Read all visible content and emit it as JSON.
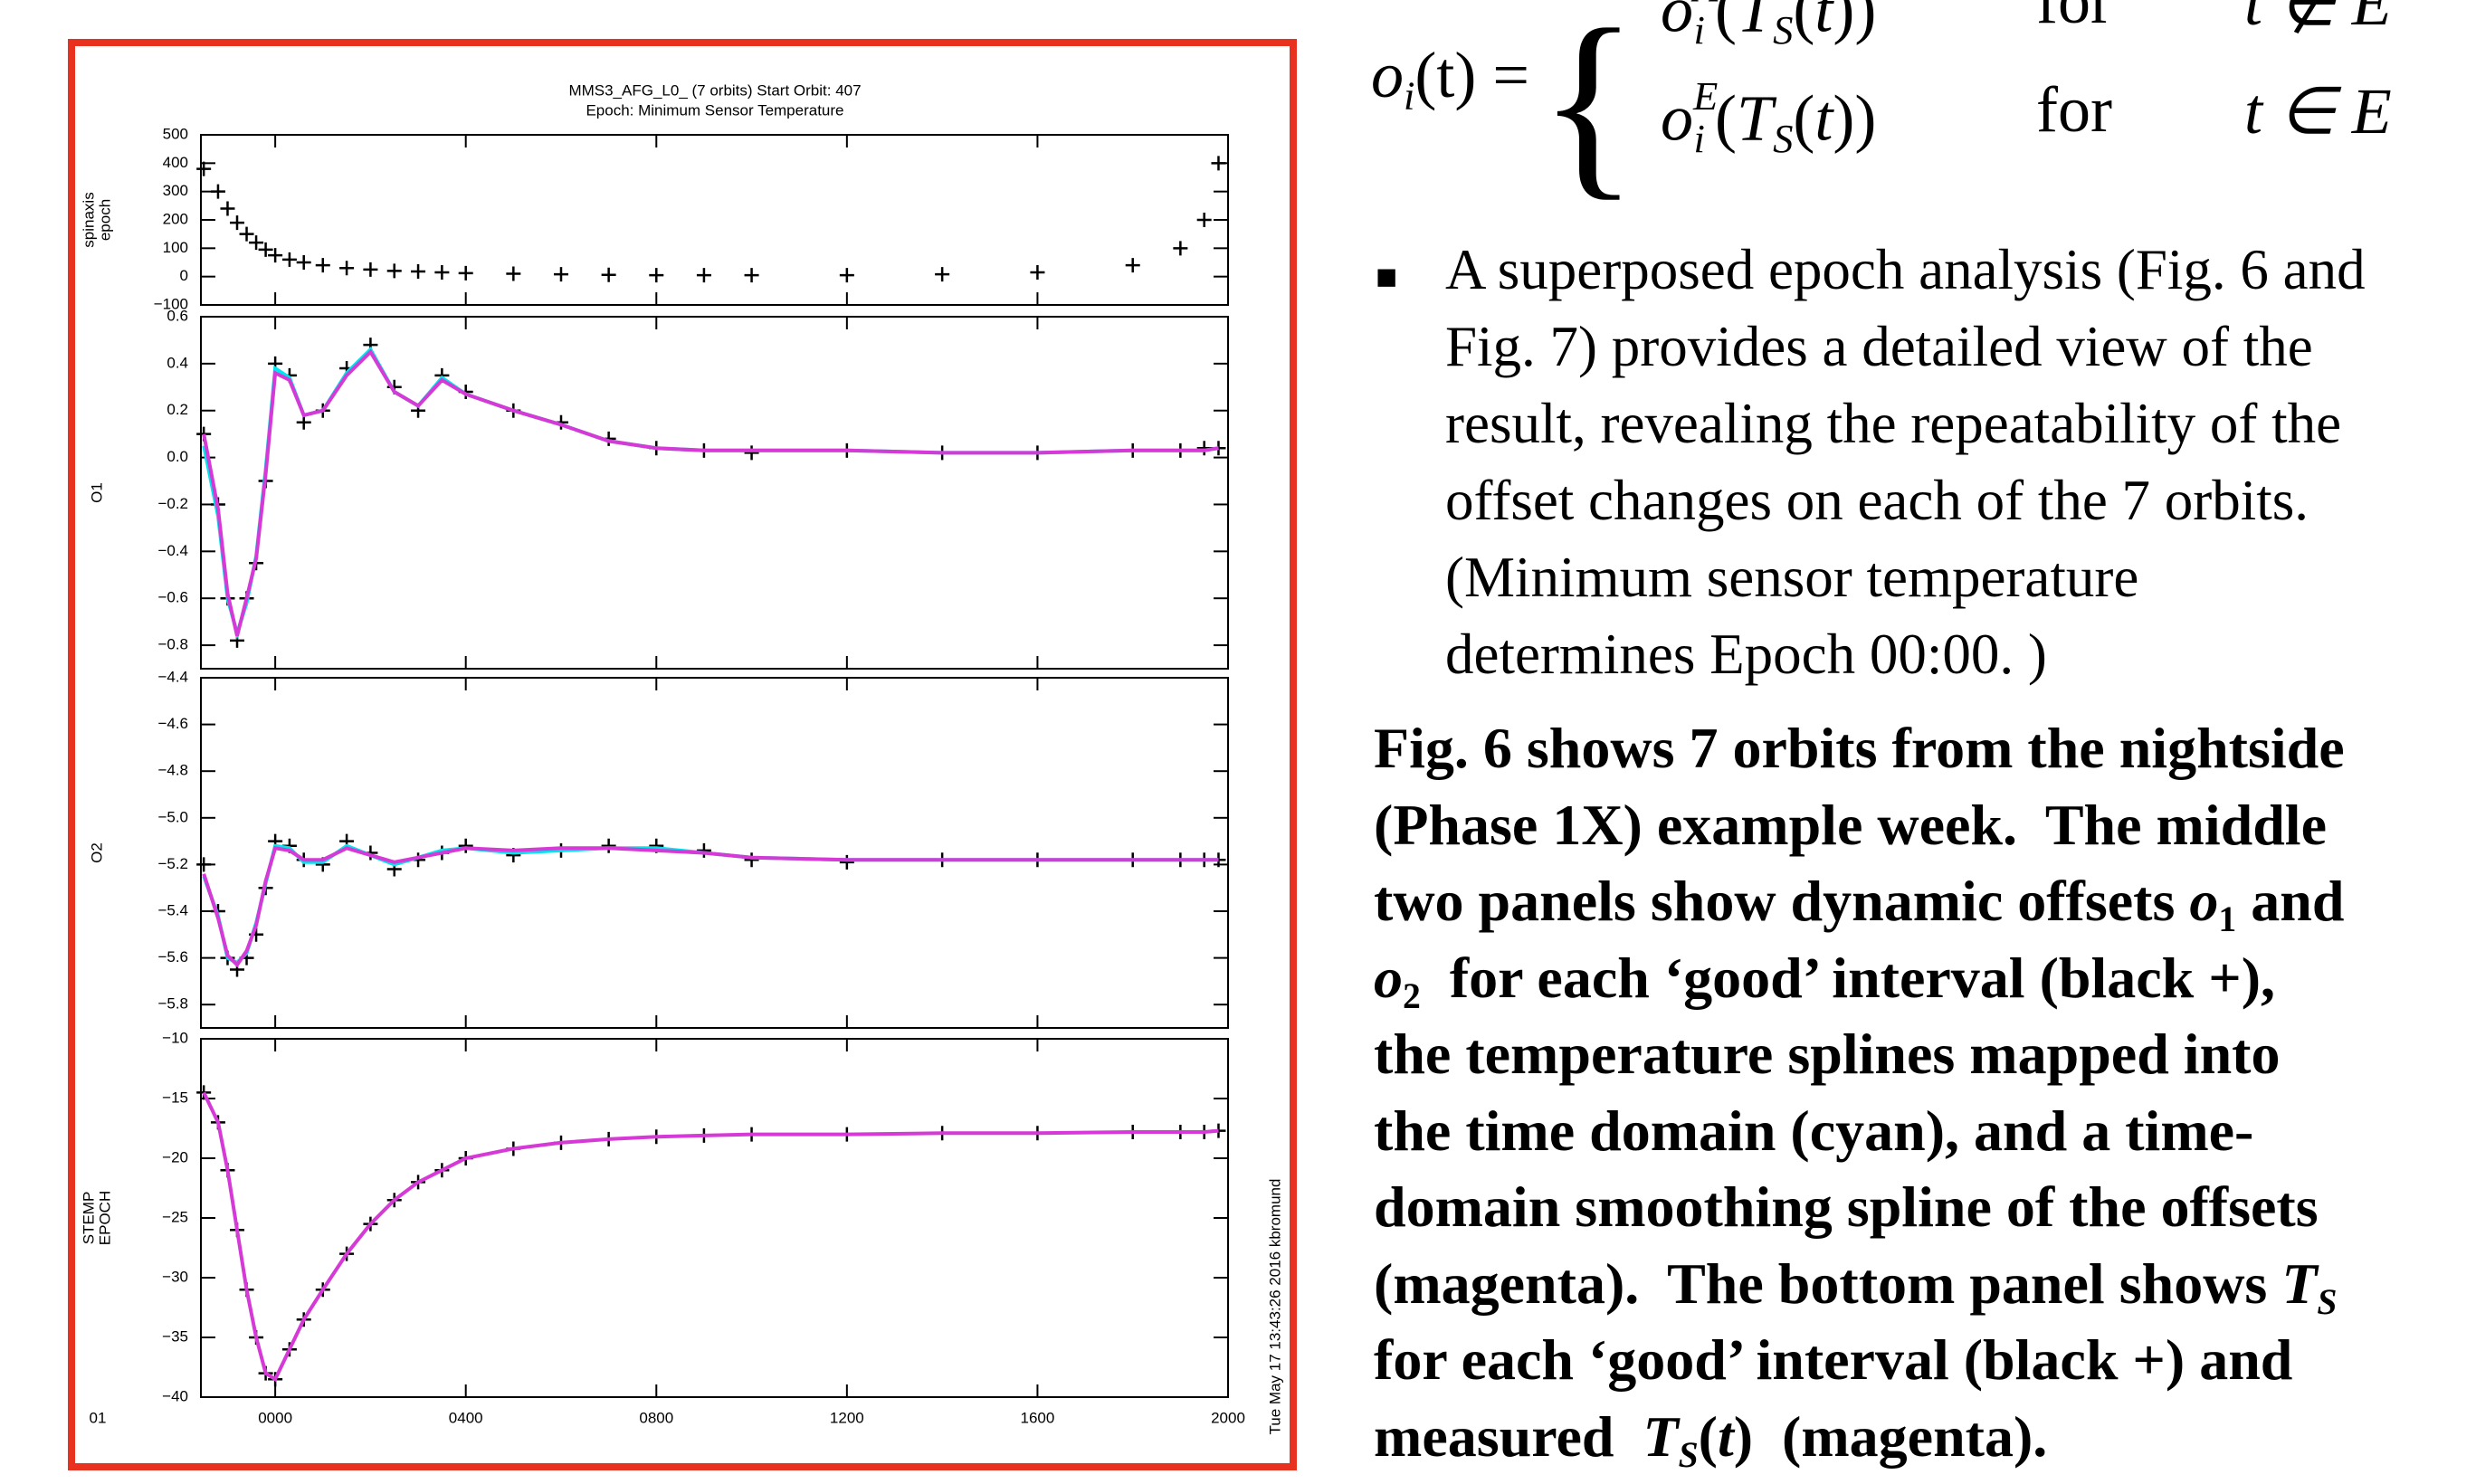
{
  "chart_data": [
    {
      "type": "scatter-line",
      "title": [
        "MMS3_AFG_L0_    (7 orbits)    Start Orbit: 407",
        "Epoch: Minimum Sensor Temperature"
      ],
      "ylabel": [
        "spinaxis",
        "epoch"
      ],
      "x": [
        -1.5,
        -1.2,
        -1.0,
        -0.8,
        -0.6,
        -0.4,
        -0.2,
        0,
        0.3,
        0.6,
        1,
        1.5,
        2,
        2.5,
        3,
        3.5,
        4,
        5,
        6,
        7,
        8,
        9,
        10,
        12,
        14,
        16,
        18,
        19,
        19.5,
        19.8
      ],
      "series": [
        {
          "color": "#000000",
          "marker": "+",
          "values": [
            380,
            300,
            240,
            190,
            150,
            120,
            95,
            75,
            60,
            50,
            40,
            30,
            25,
            20,
            18,
            15,
            12,
            10,
            8,
            6,
            5,
            5,
            5,
            5,
            8,
            15,
            40,
            100,
            200,
            400
          ]
        }
      ],
      "xlim": [
        -1.56,
        20
      ],
      "xticks": [
        0,
        4,
        8,
        12,
        16,
        20
      ],
      "ylim": [
        -100,
        500
      ],
      "yticks": [
        {
          "value": -100,
          "label": "−100"
        },
        0,
        100,
        200,
        300,
        400,
        500
      ]
    },
    {
      "type": "scatter-line",
      "ylabel": [
        "O1"
      ],
      "x": [
        -1.5,
        -1.2,
        -1.0,
        -0.8,
        -0.6,
        -0.4,
        -0.2,
        0,
        0.3,
        0.6,
        1,
        1.5,
        2,
        2.5,
        3,
        3.5,
        4,
        5,
        6,
        7,
        8,
        9,
        10,
        12,
        14,
        16,
        18,
        19,
        19.5,
        19.8
      ],
      "series": [
        {
          "color": "#000000",
          "marker": "+",
          "values": [
            0.1,
            -0.2,
            -0.6,
            -0.78,
            -0.6,
            -0.45,
            -0.1,
            0.4,
            0.35,
            0.15,
            0.2,
            0.38,
            0.48,
            0.3,
            0.2,
            0.35,
            0.28,
            0.2,
            0.15,
            0.08,
            0.04,
            0.03,
            0.02,
            0.03,
            0.02,
            0.02,
            0.03,
            0.03,
            0.04,
            0.04
          ]
        },
        {
          "color": "#00e5ee",
          "marker": "line",
          "values": [
            0.05,
            -0.25,
            -0.6,
            -0.75,
            -0.62,
            -0.42,
            -0.05,
            0.38,
            0.34,
            0.18,
            0.2,
            0.36,
            0.46,
            0.28,
            0.22,
            0.34,
            0.27,
            0.2,
            0.14,
            0.07,
            0.04,
            0.03,
            0.03,
            0.03,
            0.02,
            0.02,
            0.03,
            0.03,
            0.03,
            0.04
          ]
        },
        {
          "color": "#d63ad6",
          "marker": "line",
          "values": [
            0.1,
            -0.22,
            -0.58,
            -0.76,
            -0.6,
            -0.43,
            -0.07,
            0.36,
            0.33,
            0.18,
            0.2,
            0.35,
            0.45,
            0.28,
            0.22,
            0.33,
            0.27,
            0.2,
            0.14,
            0.07,
            0.04,
            0.03,
            0.03,
            0.03,
            0.02,
            0.02,
            0.03,
            0.03,
            0.03,
            0.04
          ]
        }
      ],
      "xlim": [
        -1.56,
        20
      ],
      "xticks": [
        0,
        4,
        8,
        12,
        16,
        20
      ],
      "ylim": [
        -0.9,
        0.6
      ],
      "yticks": [
        {
          "value": -0.8,
          "label": "−0.8"
        },
        {
          "value": -0.6,
          "label": "−0.6"
        },
        {
          "value": -0.4,
          "label": "−0.4"
        },
        {
          "value": -0.2,
          "label": "−0.2"
        },
        {
          "value": 0,
          "label": "0.0"
        },
        0.2,
        0.4,
        0.6
      ]
    },
    {
      "type": "scatter-line",
      "ylabel": [
        "O2"
      ],
      "x": [
        -1.5,
        -1.2,
        -1.0,
        -0.8,
        -0.6,
        -0.4,
        -0.2,
        0,
        0.3,
        0.6,
        1,
        1.5,
        2,
        2.5,
        3,
        3.5,
        4,
        5,
        6,
        7,
        8,
        9,
        10,
        12,
        14,
        16,
        18,
        19,
        19.5,
        19.8
      ],
      "series": [
        {
          "color": "#000000",
          "marker": "+",
          "values": [
            -5.2,
            -5.4,
            -5.6,
            -5.65,
            -5.6,
            -5.5,
            -5.3,
            -5.1,
            -5.12,
            -5.18,
            -5.2,
            -5.1,
            -5.15,
            -5.22,
            -5.18,
            -5.15,
            -5.12,
            -5.16,
            -5.14,
            -5.12,
            -5.12,
            -5.14,
            -5.18,
            -5.19,
            -5.18,
            -5.18,
            -5.18,
            -5.18,
            -5.18,
            -5.18
          ]
        },
        {
          "color": "#00e5ee",
          "marker": "line",
          "values": [
            -5.25,
            -5.42,
            -5.6,
            -5.62,
            -5.58,
            -5.45,
            -5.28,
            -5.12,
            -5.13,
            -5.19,
            -5.19,
            -5.12,
            -5.16,
            -5.2,
            -5.17,
            -5.14,
            -5.13,
            -5.15,
            -5.14,
            -5.13,
            -5.13,
            -5.15,
            -5.17,
            -5.18,
            -5.18,
            -5.18,
            -5.18,
            -5.18,
            -5.18,
            -5.18
          ]
        },
        {
          "color": "#d63ad6",
          "marker": "line",
          "values": [
            -5.24,
            -5.43,
            -5.59,
            -5.63,
            -5.57,
            -5.46,
            -5.27,
            -5.13,
            -5.14,
            -5.18,
            -5.18,
            -5.13,
            -5.16,
            -5.19,
            -5.17,
            -5.15,
            -5.13,
            -5.14,
            -5.13,
            -5.13,
            -5.14,
            -5.15,
            -5.17,
            -5.18,
            -5.18,
            -5.18,
            -5.18,
            -5.18,
            -5.18,
            -5.18
          ]
        }
      ],
      "xlim": [
        -1.56,
        20
      ],
      "xticks": [
        0,
        4,
        8,
        12,
        16,
        20
      ],
      "ylim": [
        -5.9,
        -4.4
      ],
      "yticks": [
        {
          "value": -5.8,
          "label": "−5.8"
        },
        {
          "value": -5.6,
          "label": "−5.6"
        },
        {
          "value": -5.4,
          "label": "−5.4"
        },
        {
          "value": -5.2,
          "label": "−5.2"
        },
        {
          "value": -5.0,
          "label": "−5.0"
        },
        {
          "value": -4.8,
          "label": "−4.8"
        },
        {
          "value": -4.6,
          "label": "−4.6"
        },
        {
          "value": -4.4,
          "label": "−4.4"
        }
      ]
    },
    {
      "type": "scatter-line",
      "ylabel": [
        "STEMP",
        "EPOCH"
      ],
      "x": [
        -1.5,
        -1.2,
        -1.0,
        -0.8,
        -0.6,
        -0.4,
        -0.2,
        0,
        0.3,
        0.6,
        1,
        1.5,
        2,
        2.5,
        3,
        3.5,
        4,
        5,
        6,
        7,
        8,
        9,
        10,
        12,
        14,
        16,
        18,
        19,
        19.5,
        19.8
      ],
      "series": [
        {
          "color": "#000000",
          "marker": "+",
          "values": [
            -14.5,
            -17,
            -21,
            -26,
            -31,
            -35,
            -38,
            -38.5,
            -36,
            -33.5,
            -31,
            -28,
            -25.5,
            -23.5,
            -22,
            -21,
            -20,
            -19.2,
            -18.7,
            -18.4,
            -18.2,
            -18.1,
            -18,
            -18,
            -17.9,
            -17.9,
            -17.8,
            -17.8,
            -17.8,
            -17.7
          ]
        },
        {
          "color": "#d63ad6",
          "marker": "line",
          "values": [
            -14.5,
            -17,
            -21,
            -26,
            -31,
            -35,
            -38,
            -38.5,
            -36,
            -33.5,
            -31,
            -28,
            -25.5,
            -23.5,
            -22,
            -21,
            -20,
            -19.2,
            -18.7,
            -18.4,
            -18.2,
            -18.1,
            -18,
            -18,
            -17.9,
            -17.9,
            -17.8,
            -17.8,
            -17.8,
            -17.7
          ]
        }
      ],
      "xlim": [
        -1.56,
        20
      ],
      "xticks": [
        {
          "value": 0,
          "label": "0000"
        },
        {
          "value": 4,
          "label": "0400"
        },
        {
          "value": 8,
          "label": "0800"
        },
        {
          "value": 12,
          "label": "1200"
        },
        {
          "value": 16,
          "label": "1600"
        },
        {
          "value": 20,
          "label": "2000"
        }
      ],
      "x_axis_note": "01",
      "side_note": "Tue May 17 13:43:26 2016 kbromund",
      "ylim": [
        -40,
        -10
      ],
      "yticks": [
        {
          "value": -40,
          "label": "−40"
        },
        {
          "value": -35,
          "label": "−35"
        },
        {
          "value": -30,
          "label": "−30"
        },
        {
          "value": -25,
          "label": "−25"
        },
        {
          "value": -20,
          "label": "−20"
        },
        {
          "value": -15,
          "label": "−15"
        },
        {
          "value": -10,
          "label": "−10"
        }
      ]
    }
  ],
  "equation": {
    "lhs": [
      {
        "text": "o",
        "style": "italic"
      },
      {
        "text": "i",
        "style": "sub italic"
      },
      {
        "text": "(t) ="
      }
    ],
    "rows": [
      {
        "expr": [
          {
            "text": "o",
            "style": "italic"
          },
          {
            "text": "A",
            "style": "sup italic"
          },
          {
            "text": "i",
            "style": "subback italic"
          },
          {
            "text": "("
          },
          {
            "text": "T",
            "style": "italic"
          },
          {
            "text": "S",
            "style": "sub italic"
          },
          {
            "text": "("
          },
          {
            "text": "t",
            "style": "italic"
          },
          {
            "text": "))"
          }
        ],
        "word": "for",
        "cond": [
          {
            "text": "t ∉ E",
            "style": "italic"
          }
        ]
      },
      {
        "expr": [
          {
            "text": "o",
            "style": "italic"
          },
          {
            "text": "E",
            "style": "sup italic"
          },
          {
            "text": "i",
            "style": "subback italic"
          },
          {
            "text": "("
          },
          {
            "text": "T",
            "style": "italic"
          },
          {
            "text": "S",
            "style": "sub italic"
          },
          {
            "text": "("
          },
          {
            "text": "t",
            "style": "italic"
          },
          {
            "text": "))"
          }
        ],
        "word": "for",
        "cond": [
          {
            "text": "t ∈ E",
            "style": "italic"
          }
        ]
      }
    ]
  },
  "bullet": [
    "A superposed epoch analysis (Fig. 6 and",
    "Fig. 7) provides a detailed view of the",
    "result, revealing the repeatability of the",
    "offset changes on each of the 7 orbits.",
    "(Minimum sensor temperature",
    "determines Epoch 00:00. )"
  ],
  "caption": [
    [
      {
        "text": "Fig. 6 shows 7 orbits from the nightside"
      }
    ],
    [
      {
        "text": "(Phase 1X) example week.  The middle"
      }
    ],
    [
      {
        "text": "two panels show dynamic offsets "
      },
      {
        "text": "o",
        "style": "italic"
      },
      {
        "text": "1",
        "style": "sub"
      },
      {
        "text": " and"
      }
    ],
    [
      {
        "text": "o",
        "style": "italic"
      },
      {
        "text": "2",
        "style": "sub"
      },
      {
        "text": "  for each ‘good’ interval (black +),"
      }
    ],
    [
      {
        "text": "the temperature splines mapped into"
      }
    ],
    [
      {
        "text": "the time domain (cyan), and a time-"
      }
    ],
    [
      {
        "text": "domain smoothing spline of the offsets"
      }
    ],
    [
      {
        "text": "(magenta).  The bottom panel shows "
      },
      {
        "text": "T",
        "style": "italic"
      },
      {
        "text": "S",
        "style": "sub italic"
      }
    ],
    [
      {
        "text": "for each ‘good’ interval (black +) and"
      }
    ],
    [
      {
        "text": "measured  "
      },
      {
        "text": "T",
        "style": "italic"
      },
      {
        "text": "S",
        "style": "sub italic"
      },
      {
        "text": "("
      },
      {
        "text": "t",
        "style": "italic"
      },
      {
        "text": ")  (magenta)."
      }
    ]
  ]
}
